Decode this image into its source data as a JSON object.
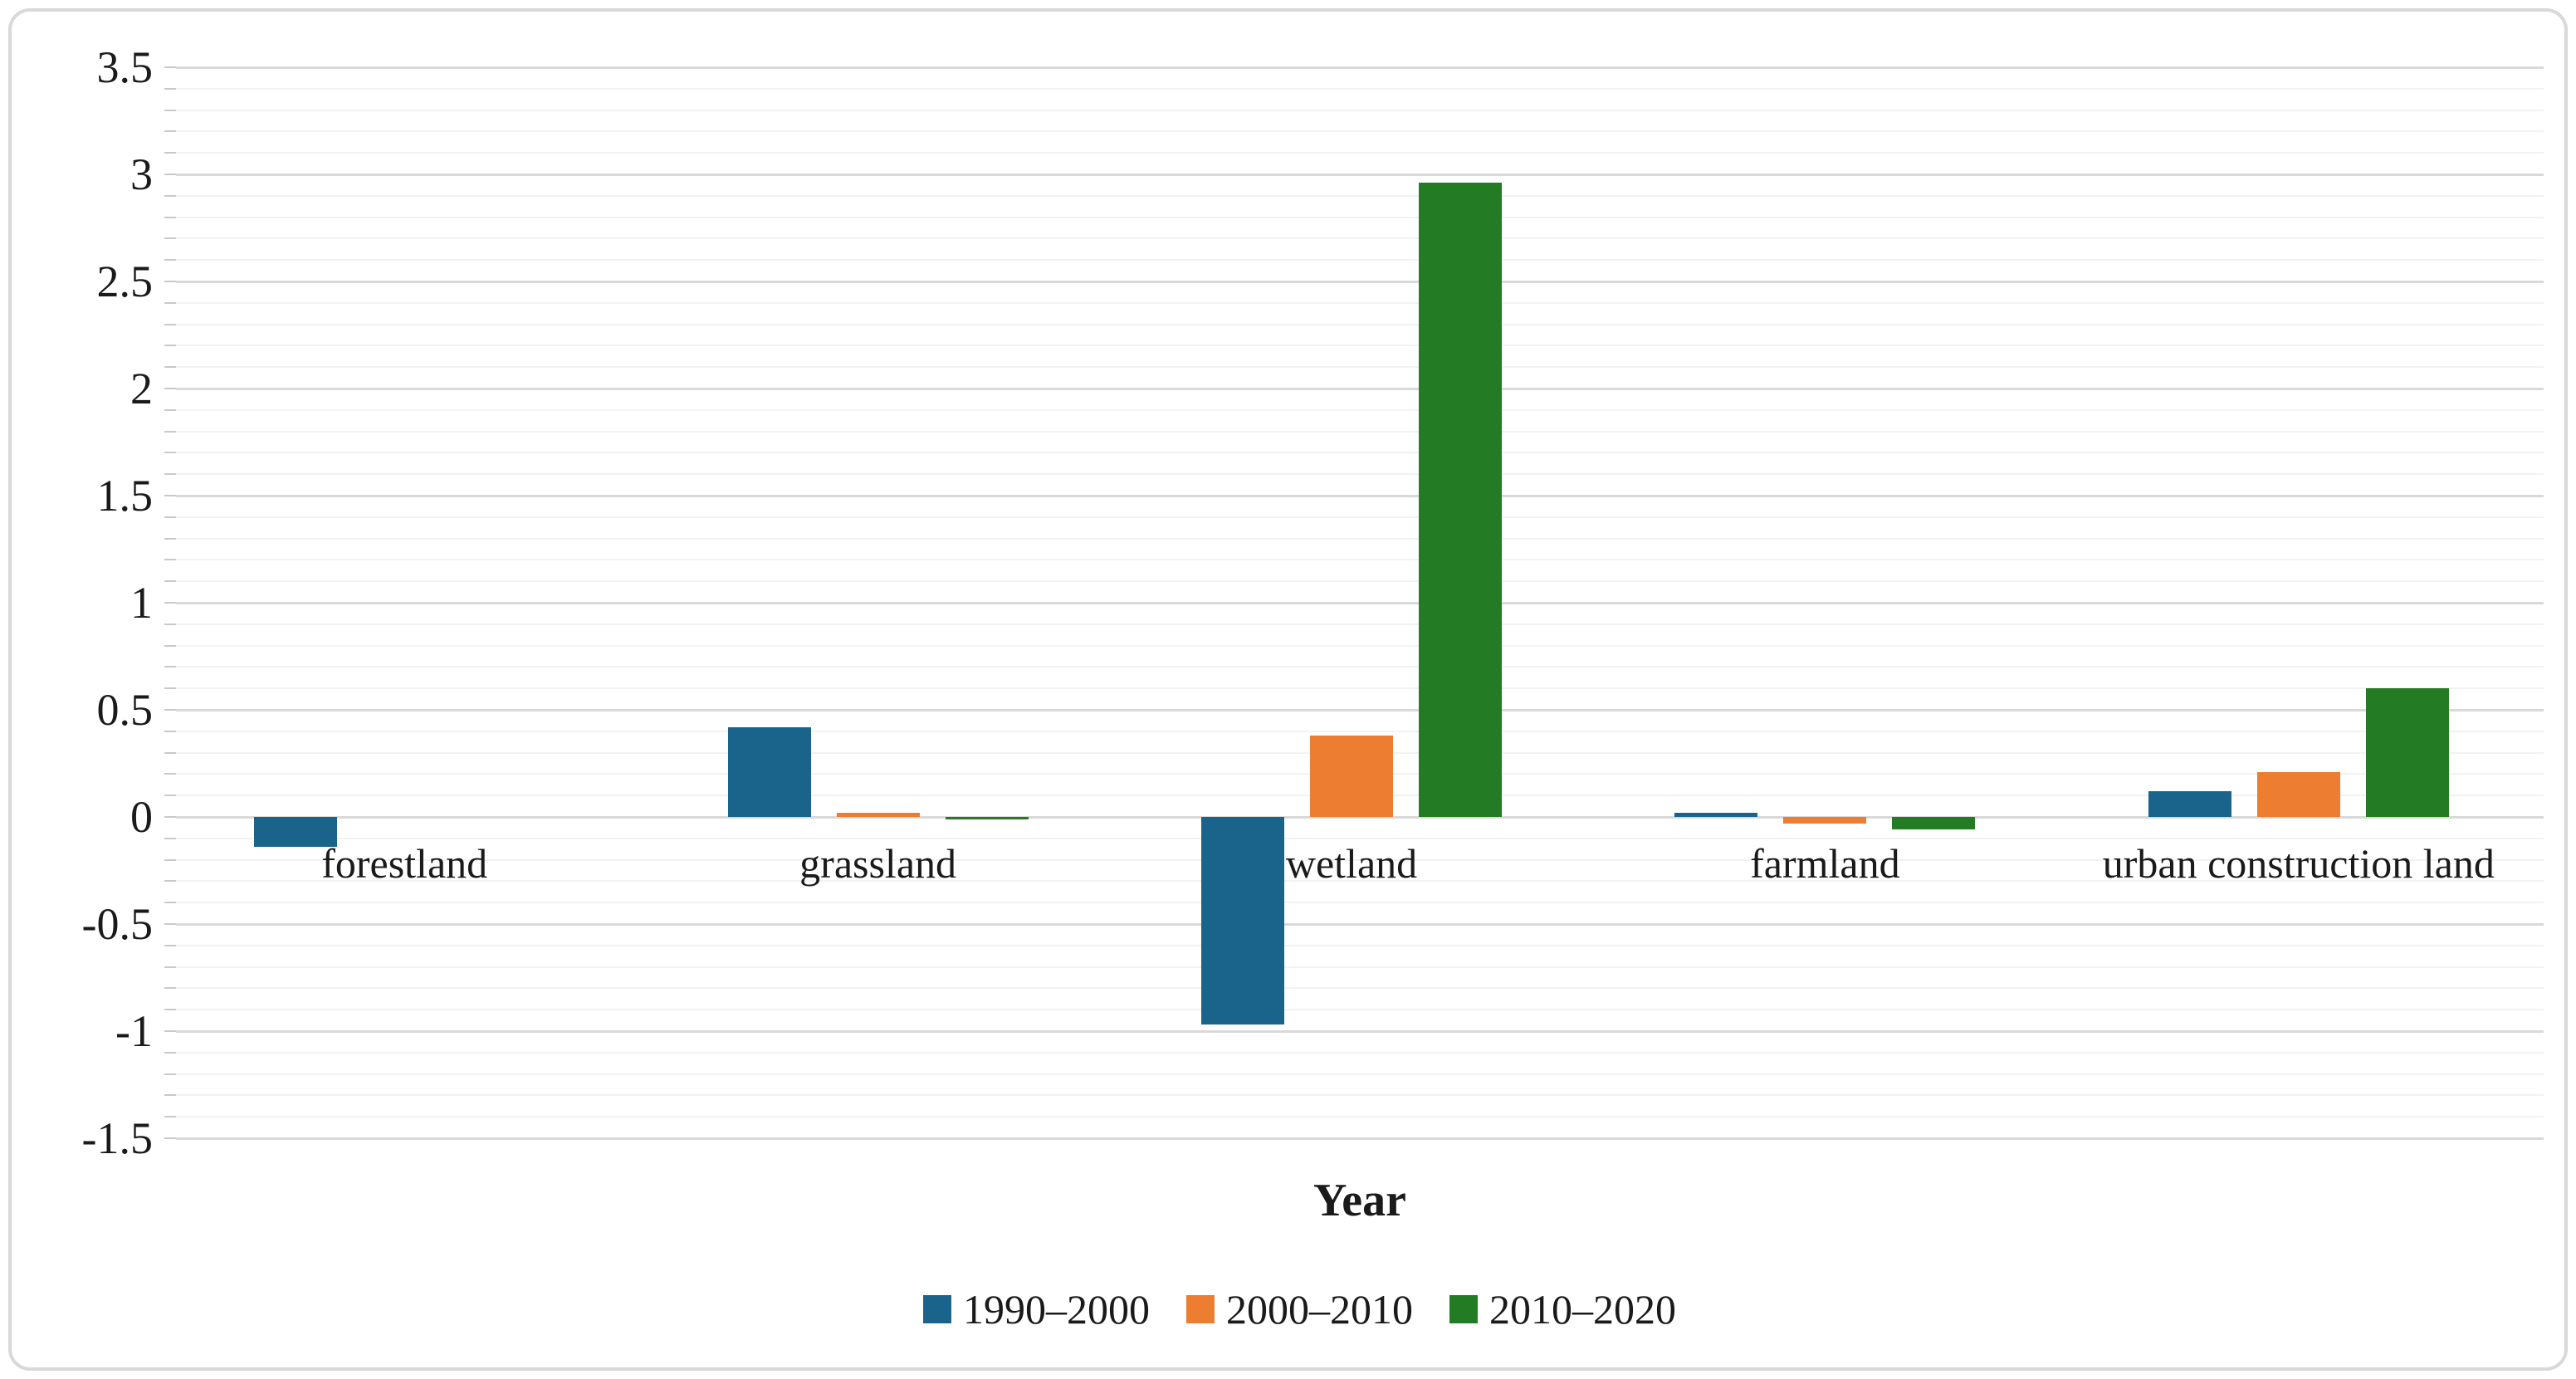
{
  "chart_data": {
    "type": "bar",
    "title": "",
    "xlabel": "Year",
    "ylabel": "",
    "categories": [
      "forestland",
      "grassland",
      "wetland",
      "farmland",
      "urban construction land"
    ],
    "series": [
      {
        "name": "1990–2000",
        "color": "#1a648c",
        "values": [
          -0.14,
          0.42,
          -0.97,
          0.02,
          0.12
        ]
      },
      {
        "name": "2000–2010",
        "color": "#ed7d31",
        "values": [
          0,
          0.02,
          0.38,
          -0.03,
          0.21
        ]
      },
      {
        "name": "2010–2020",
        "color": "#237b23",
        "values": [
          0,
          -0.01,
          2.96,
          -0.06,
          0.6
        ]
      }
    ],
    "ylim": [
      -1.5,
      3.5
    ],
    "ytick_step_major": 0.5,
    "ytick_step_minor": 0.1,
    "yticks": [
      "3.5",
      "3",
      "2.5",
      "2",
      "1.5",
      "1",
      "0.5",
      "0",
      "-0.5",
      "-1",
      "-1.5"
    ],
    "grid": "horizontal major+minor",
    "legend_position": "bottom-center"
  },
  "colors": {
    "background": "#ffffff",
    "frame_border": "#d9d9d9",
    "grid_major": "#d9d9d9",
    "grid_minor": "#f2f2f2",
    "axis_tick": "#c9c9c9",
    "text": "#1a1a1a"
  }
}
